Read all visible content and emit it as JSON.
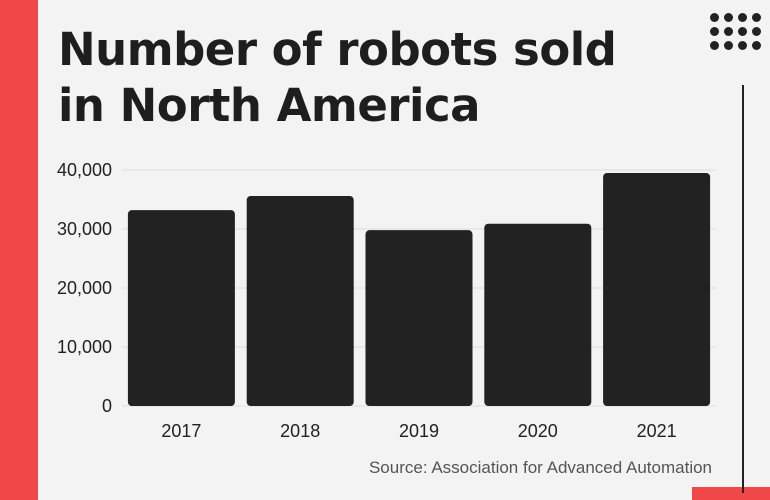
{
  "title_line1": "Number of robots sold",
  "title_line2": "in North America",
  "source": "Source: Association for Advanced Automation",
  "logo_icon": "dots-grid-icon",
  "colors": {
    "accent": "#f04848",
    "bar": "#222222",
    "background": "#f3f3f3"
  },
  "chart_data": {
    "type": "bar",
    "categories": [
      "2017",
      "2018",
      "2019",
      "2020",
      "2021"
    ],
    "values": [
      33200,
      35600,
      29800,
      30900,
      39500
    ],
    "ylim": [
      0,
      40000
    ],
    "yticks": [
      "0",
      "10,000",
      "20,000",
      "30,000",
      "40,000"
    ],
    "ytick_values": [
      0,
      10000,
      20000,
      30000,
      40000
    ],
    "grid": true,
    "legend": "none"
  }
}
